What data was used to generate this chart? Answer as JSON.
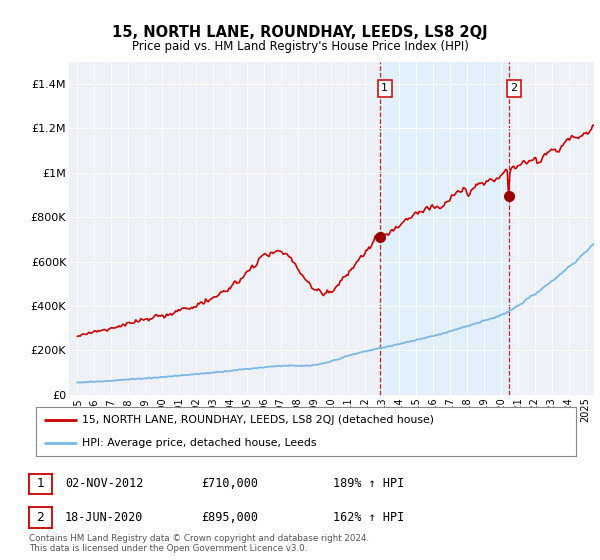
{
  "title": "15, NORTH LANE, ROUNDHAY, LEEDS, LS8 2QJ",
  "subtitle": "Price paid vs. HM Land Registry's House Price Index (HPI)",
  "legend_line1": "15, NORTH LANE, ROUNDHAY, LEEDS, LS8 2QJ (detached house)",
  "legend_line2": "HPI: Average price, detached house, Leeds",
  "sale1_label": "1",
  "sale1_date": "02-NOV-2012",
  "sale1_price": "£710,000",
  "sale1_hpi": "189% ↑ HPI",
  "sale1_year": 2012.84,
  "sale1_value": 710000,
  "sale2_label": "2",
  "sale2_date": "18-JUN-2020",
  "sale2_price": "£895,000",
  "sale2_hpi": "162% ↑ HPI",
  "sale2_year": 2020.46,
  "sale2_value": 895000,
  "hpi_color": "#7ab8e8",
  "price_color": "#cc0000",
  "marker_color": "#990000",
  "vline_color": "#cc0000",
  "shade_color": "#ddeeff",
  "footnote": "Contains HM Land Registry data © Crown copyright and database right 2024.\nThis data is licensed under the Open Government Licence v3.0.",
  "ylim": [
    0,
    1500000
  ],
  "yticks": [
    0,
    200000,
    400000,
    600000,
    800000,
    1000000,
    1200000,
    1400000
  ],
  "ytick_labels": [
    "£0",
    "£200K",
    "£400K",
    "£600K",
    "£800K",
    "£1M",
    "£1.2M",
    "£1.4M"
  ],
  "xlim_start": 1994.5,
  "xlim_end": 2025.5,
  "background_color": "#eef2f8"
}
